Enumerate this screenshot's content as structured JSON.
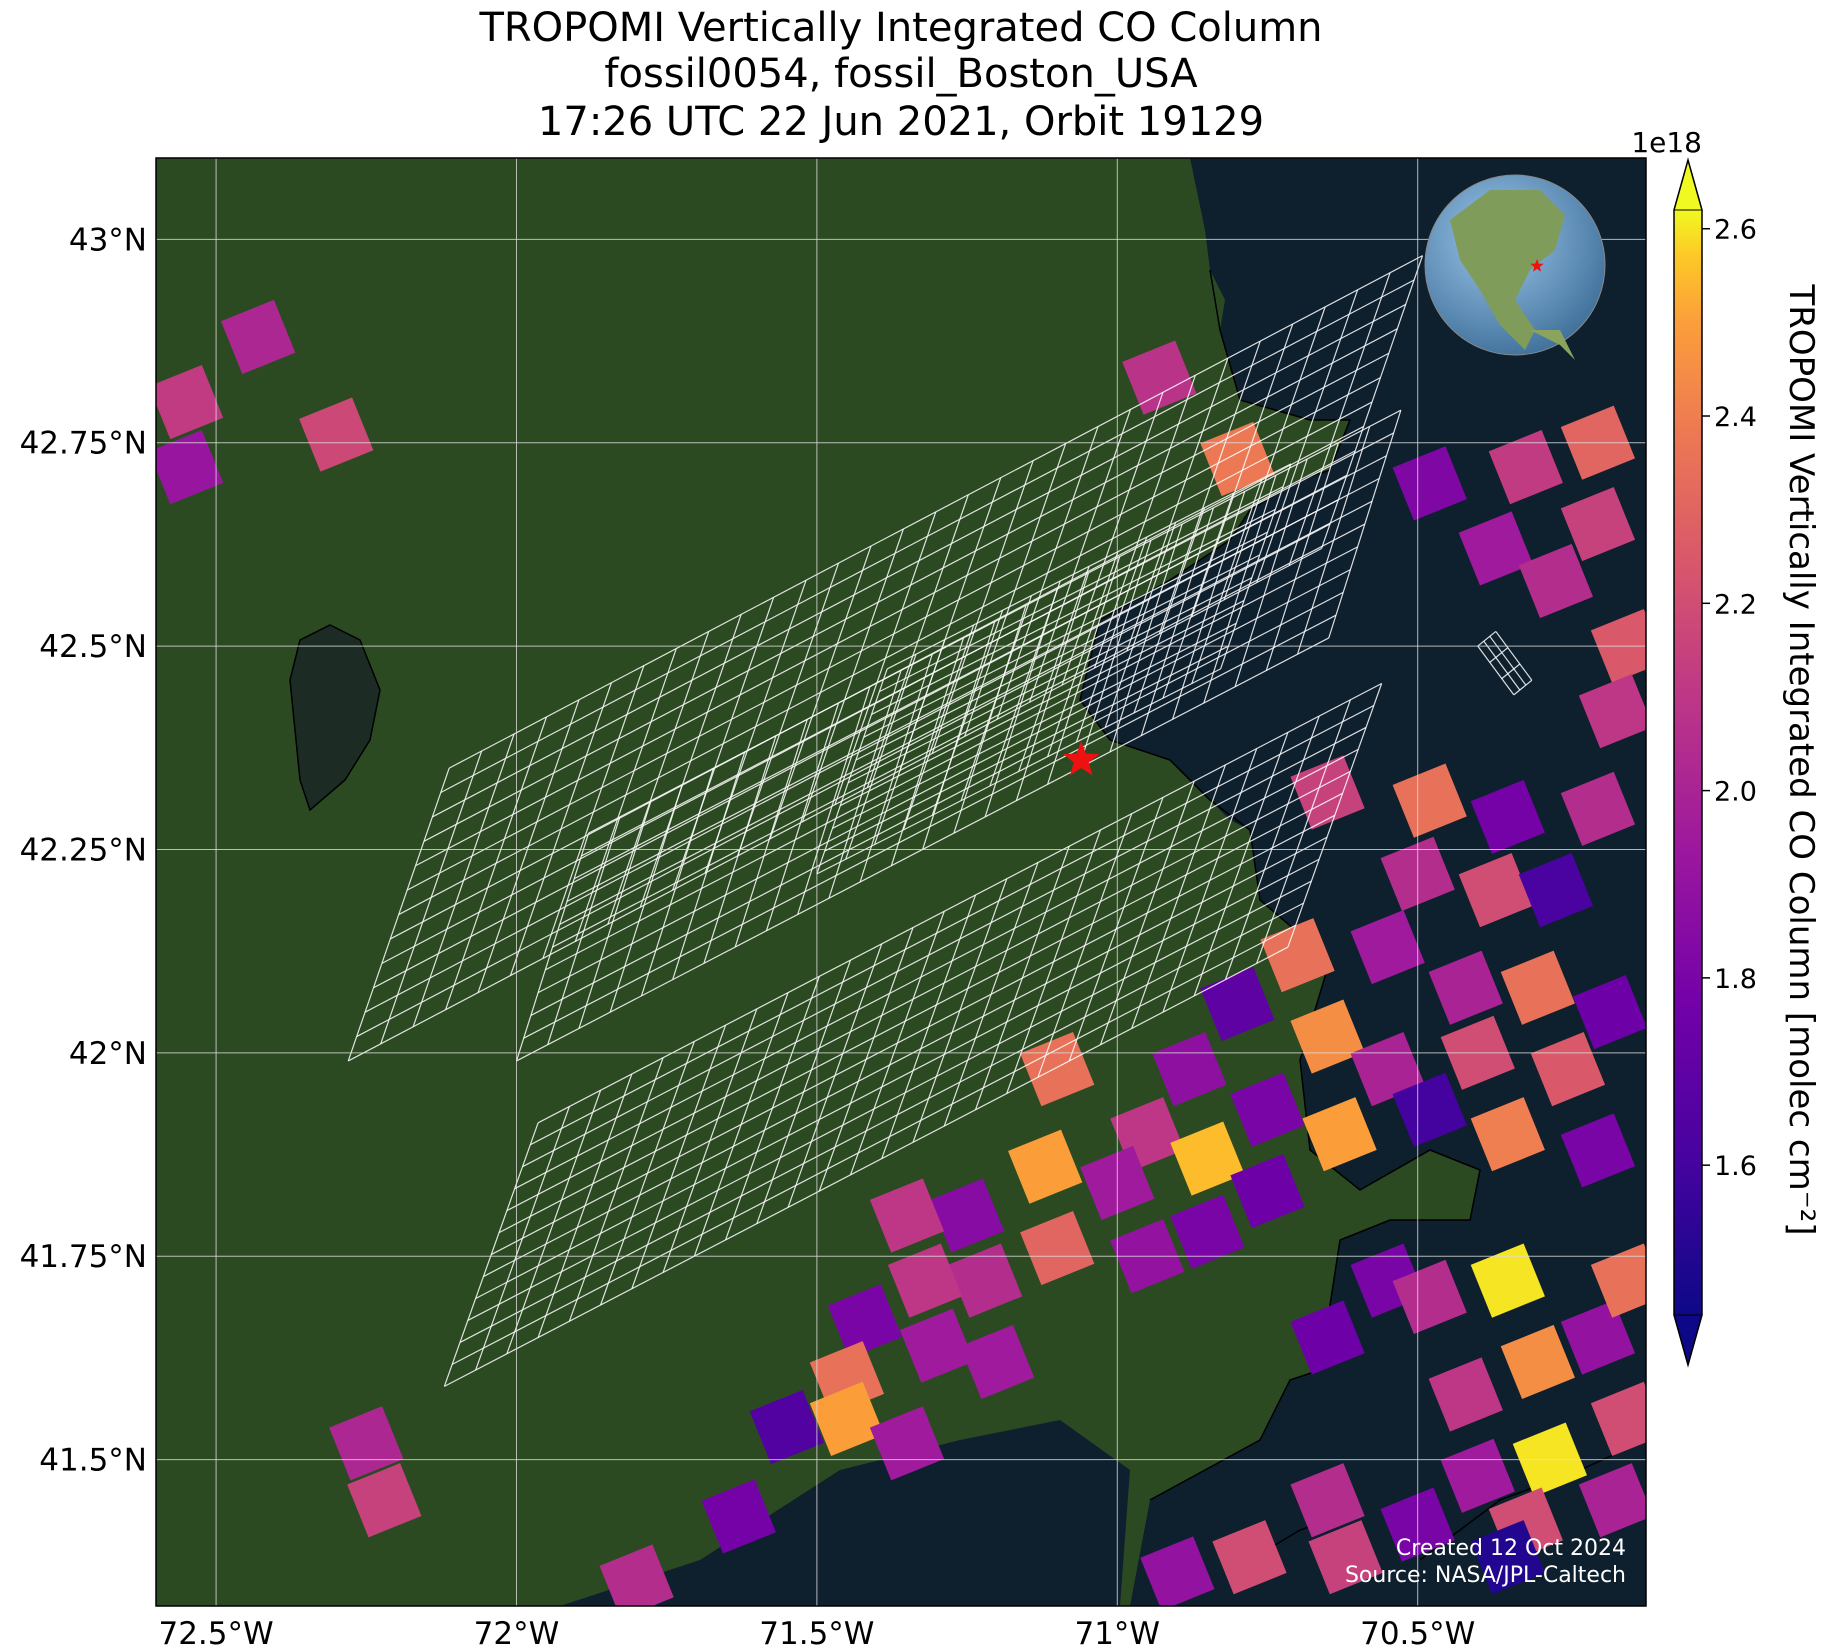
{
  "title": {
    "line1": "TROPOMI Vertically Integrated CO Column",
    "line2": "fossil0054, fossil_Boston_USA",
    "line3": "17:26 UTC 22 Jun 2021, Orbit 19129"
  },
  "axes": {
    "lon_ticks": [
      "72.5°W",
      "72°W",
      "71.5°W",
      "71°W",
      "70.5°W"
    ],
    "lat_ticks": [
      "43°N",
      "42.75°N",
      "42.5°N",
      "42.25°N",
      "42°N",
      "41.75°N",
      "41.5°N"
    ],
    "lon_range": [
      -72.6,
      -70.12
    ],
    "lat_range": [
      41.32,
      43.1
    ]
  },
  "colorbar": {
    "label": "TROPOMI Vertically Integrated CO Column [molec cm⁻²]",
    "multiplier": "1e18",
    "ticks": [
      "1.6",
      "1.8",
      "2.0",
      "2.2",
      "2.4",
      "2.6"
    ],
    "range": [
      1.44,
      2.62
    ],
    "colormap": "plasma",
    "extend": "both"
  },
  "site": {
    "name": "fossil_Boston_USA",
    "lon": -71.06,
    "lat": 42.36,
    "marker_color": "#ee1111"
  },
  "credits": {
    "created": "Created 12 Oct 2024",
    "source": "Source: NASA/JPL-Caltech"
  },
  "colors": {
    "land": "#2c4a22",
    "ocean": "#0e1f2e",
    "target_grid": "#ffffff",
    "gridlines": "#dddddd"
  },
  "chart_data": {
    "type": "heatmap",
    "units": "1e18 molec cm-2",
    "pixels": [
      {
        "lon": -72.43,
        "lat": 42.88,
        "value": 2.02
      },
      {
        "lon": -72.55,
        "lat": 42.8,
        "value": 2.12
      },
      {
        "lon": -72.3,
        "lat": 42.76,
        "value": 2.18
      },
      {
        "lon": -72.55,
        "lat": 42.72,
        "value": 1.92
      },
      {
        "lon": -70.93,
        "lat": 42.83,
        "value": 2.08
      },
      {
        "lon": -70.8,
        "lat": 42.73,
        "value": 2.38
      },
      {
        "lon": -70.48,
        "lat": 42.7,
        "value": 1.82
      },
      {
        "lon": -70.32,
        "lat": 42.72,
        "value": 2.12
      },
      {
        "lon": -70.2,
        "lat": 42.75,
        "value": 2.3
      },
      {
        "lon": -70.2,
        "lat": 42.65,
        "value": 2.15
      },
      {
        "lon": -70.37,
        "lat": 42.62,
        "value": 1.95
      },
      {
        "lon": -70.27,
        "lat": 42.58,
        "value": 2.05
      },
      {
        "lon": -70.15,
        "lat": 42.5,
        "value": 2.25
      },
      {
        "lon": -70.17,
        "lat": 42.42,
        "value": 2.1
      },
      {
        "lon": -70.65,
        "lat": 42.32,
        "value": 2.15
      },
      {
        "lon": -70.48,
        "lat": 42.31,
        "value": 2.35
      },
      {
        "lon": -70.35,
        "lat": 42.29,
        "value": 1.78
      },
      {
        "lon": -70.2,
        "lat": 42.3,
        "value": 2.05
      },
      {
        "lon": -70.5,
        "lat": 42.22,
        "value": 2.05
      },
      {
        "lon": -70.37,
        "lat": 42.2,
        "value": 2.2
      },
      {
        "lon": -70.27,
        "lat": 42.2,
        "value": 1.62
      },
      {
        "lon": -70.55,
        "lat": 42.13,
        "value": 1.95
      },
      {
        "lon": -70.42,
        "lat": 42.08,
        "value": 2.0
      },
      {
        "lon": -70.3,
        "lat": 42.08,
        "value": 2.35
      },
      {
        "lon": -70.18,
        "lat": 42.05,
        "value": 1.75
      },
      {
        "lon": -70.7,
        "lat": 42.12,
        "value": 2.35
      },
      {
        "lon": -70.65,
        "lat": 42.02,
        "value": 2.45
      },
      {
        "lon": -70.55,
        "lat": 41.98,
        "value": 2.0
      },
      {
        "lon": -70.4,
        "lat": 42.0,
        "value": 2.2
      },
      {
        "lon": -70.25,
        "lat": 41.98,
        "value": 2.25
      },
      {
        "lon": -70.63,
        "lat": 41.9,
        "value": 2.5
      },
      {
        "lon": -70.48,
        "lat": 41.93,
        "value": 1.6
      },
      {
        "lon": -70.35,
        "lat": 41.9,
        "value": 2.4
      },
      {
        "lon": -70.2,
        "lat": 41.88,
        "value": 1.8
      },
      {
        "lon": -70.8,
        "lat": 42.06,
        "value": 1.7
      },
      {
        "lon": -70.88,
        "lat": 41.98,
        "value": 1.88
      },
      {
        "lon": -70.75,
        "lat": 41.93,
        "value": 1.8
      },
      {
        "lon": -70.95,
        "lat": 41.9,
        "value": 2.1
      },
      {
        "lon": -71.1,
        "lat": 41.98,
        "value": 2.35
      },
      {
        "lon": -70.85,
        "lat": 41.87,
        "value": 2.55
      },
      {
        "lon": -71.0,
        "lat": 41.84,
        "value": 1.95
      },
      {
        "lon": -71.12,
        "lat": 41.86,
        "value": 2.5
      },
      {
        "lon": -71.25,
        "lat": 41.8,
        "value": 1.85
      },
      {
        "lon": -71.35,
        "lat": 41.8,
        "value": 2.1
      },
      {
        "lon": -70.75,
        "lat": 41.83,
        "value": 1.75
      },
      {
        "lon": -70.85,
        "lat": 41.78,
        "value": 1.8
      },
      {
        "lon": -70.95,
        "lat": 41.75,
        "value": 1.9
      },
      {
        "lon": -71.1,
        "lat": 41.76,
        "value": 2.3
      },
      {
        "lon": -71.22,
        "lat": 41.72,
        "value": 2.05
      },
      {
        "lon": -71.32,
        "lat": 41.72,
        "value": 2.1
      },
      {
        "lon": -71.42,
        "lat": 41.67,
        "value": 1.8
      },
      {
        "lon": -71.3,
        "lat": 41.64,
        "value": 1.95
      },
      {
        "lon": -71.2,
        "lat": 41.62,
        "value": 1.95
      },
      {
        "lon": -71.45,
        "lat": 41.6,
        "value": 2.35
      },
      {
        "lon": -71.45,
        "lat": 41.55,
        "value": 2.5
      },
      {
        "lon": -71.55,
        "lat": 41.54,
        "value": 1.65
      },
      {
        "lon": -71.35,
        "lat": 41.52,
        "value": 1.95
      },
      {
        "lon": -70.55,
        "lat": 41.72,
        "value": 1.8
      },
      {
        "lon": -70.65,
        "lat": 41.65,
        "value": 1.75
      },
      {
        "lon": -70.48,
        "lat": 41.7,
        "value": 2.05
      },
      {
        "lon": -70.35,
        "lat": 41.72,
        "value": 2.6
      },
      {
        "lon": -70.3,
        "lat": 41.62,
        "value": 2.45
      },
      {
        "lon": -70.2,
        "lat": 41.65,
        "value": 1.9
      },
      {
        "lon": -70.15,
        "lat": 41.72,
        "value": 2.35
      },
      {
        "lon": -70.42,
        "lat": 41.58,
        "value": 2.1
      },
      {
        "lon": -70.28,
        "lat": 41.5,
        "value": 2.6
      },
      {
        "lon": -70.15,
        "lat": 41.55,
        "value": 2.2
      },
      {
        "lon": -70.4,
        "lat": 41.48,
        "value": 1.95
      },
      {
        "lon": -70.32,
        "lat": 41.42,
        "value": 2.2
      },
      {
        "lon": -70.17,
        "lat": 41.45,
        "value": 2.0
      },
      {
        "lon": -70.5,
        "lat": 41.42,
        "value": 1.8
      },
      {
        "lon": -70.65,
        "lat": 41.45,
        "value": 2.05
      },
      {
        "lon": -70.62,
        "lat": 41.38,
        "value": 2.15
      },
      {
        "lon": -70.78,
        "lat": 41.38,
        "value": 2.2
      },
      {
        "lon": -70.9,
        "lat": 41.36,
        "value": 1.9
      },
      {
        "lon": -70.35,
        "lat": 41.38,
        "value": 1.5
      },
      {
        "lon": -72.25,
        "lat": 41.52,
        "value": 2.02
      },
      {
        "lon": -72.22,
        "lat": 41.45,
        "value": 2.15
      },
      {
        "lon": -71.63,
        "lat": 41.43,
        "value": 1.78
      },
      {
        "lon": -71.8,
        "lat": 41.35,
        "value": 2.05
      }
    ]
  }
}
